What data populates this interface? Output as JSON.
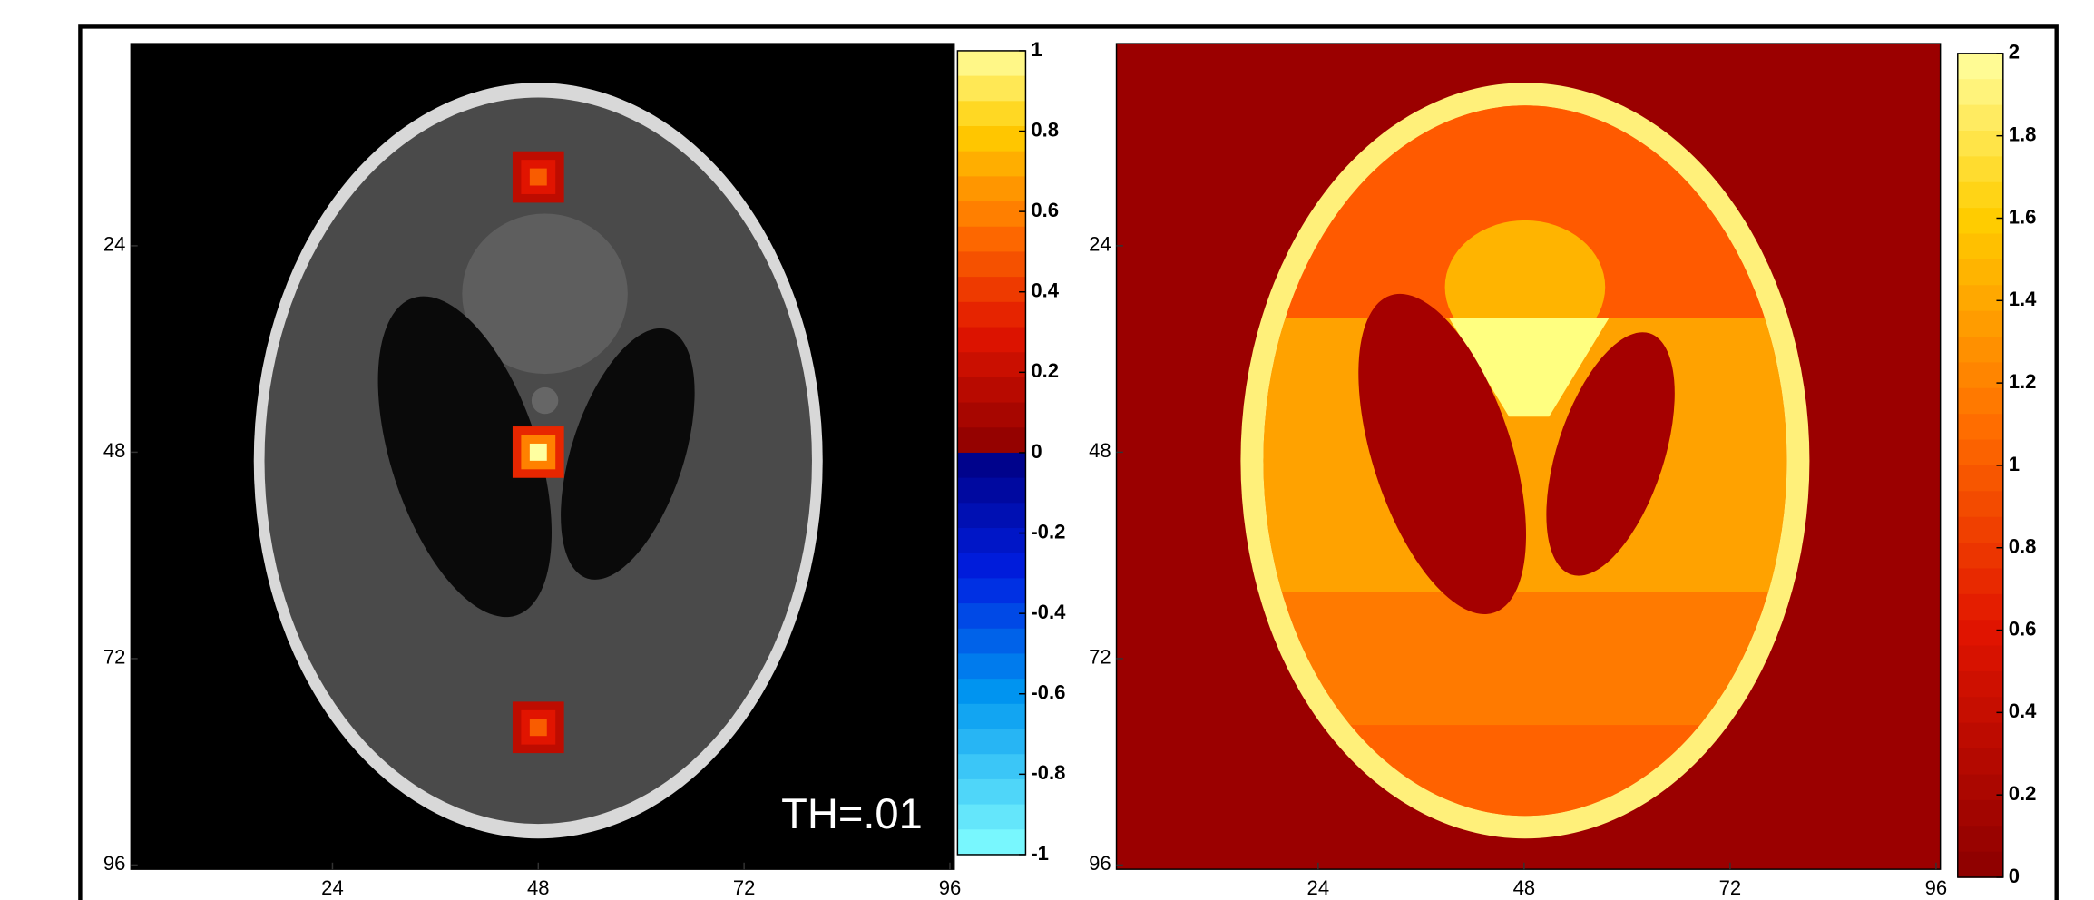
{
  "chart_data": [
    {
      "type": "image",
      "colormap": "hot-cold",
      "xlim": [
        0.5,
        96.5
      ],
      "ylim": [
        0.5,
        96.5
      ],
      "xticks": [
        24,
        48,
        72,
        96
      ],
      "yticks": [
        24,
        48,
        72,
        96
      ],
      "clim": [
        -1,
        1
      ],
      "cticks": [
        1,
        0.8,
        0.6,
        0.4,
        0.2,
        0,
        -0.2,
        -0.4,
        -0.6,
        -0.8,
        -1
      ],
      "x": [
        48,
        48,
        48
      ],
      "y": [
        16,
        48,
        80
      ],
      "values": [
        0.5,
        1,
        0.5
      ],
      "annotation": "TH=.01"
    },
    {
      "type": "image",
      "colormap": "hot",
      "xlim": [
        0.5,
        96.5
      ],
      "ylim": [
        0.5,
        96.5
      ],
      "xticks": [
        24,
        48,
        72,
        96
      ],
      "yticks": [
        24,
        48,
        72,
        96
      ],
      "clim": [
        0,
        2
      ],
      "cticks": [
        2,
        1.8,
        1.6,
        1.4,
        1.2,
        1,
        0.8,
        0.6,
        0.4,
        0.2,
        0
      ]
    }
  ]
}
